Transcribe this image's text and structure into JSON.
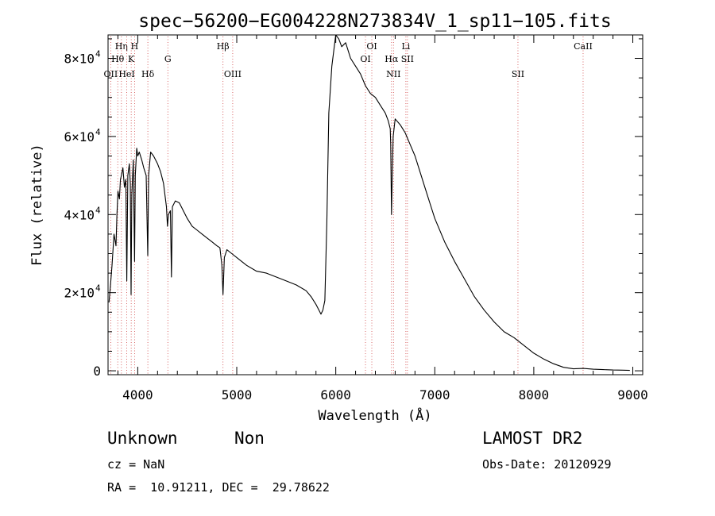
{
  "chart_data": {
    "type": "line",
    "title": "spec−56200−EG004228N273834V_1_sp11−105.fits",
    "xlabel": "Wavelength (Å)",
    "ylabel": "Flux (relative)",
    "xlim": [
      3700,
      9100
    ],
    "ylim": [
      -1000,
      86000
    ],
    "x_ticks": [
      {
        "value": 4000,
        "label": "4000"
      },
      {
        "value": 5000,
        "label": "5000"
      },
      {
        "value": 6000,
        "label": "6000"
      },
      {
        "value": 7000,
        "label": "7000"
      },
      {
        "value": 8000,
        "label": "8000"
      },
      {
        "value": 9000,
        "label": "9000"
      }
    ],
    "y_ticks": [
      {
        "value": 0,
        "label": "0"
      },
      {
        "value": 20000,
        "label": "2×10",
        "exp": "4"
      },
      {
        "value": 40000,
        "label": "4×10",
        "exp": "4"
      },
      {
        "value": 60000,
        "label": "6×10",
        "exp": "4"
      },
      {
        "value": 80000,
        "label": "8×10",
        "exp": "4"
      }
    ],
    "series": [
      {
        "x": [
          3710,
          3725,
          3740,
          3760,
          3780,
          3790,
          3800,
          3815,
          3825,
          3835,
          3850,
          3865,
          3880,
          3889,
          3900,
          3915,
          3925,
          3933,
          3940,
          3955,
          3968,
          3975,
          3990,
          4000,
          4015,
          4040,
          4060,
          4085,
          4101,
          4110,
          4130,
          4160,
          4180,
          4200,
          4230,
          4260,
          4290,
          4300,
          4310,
          4330,
          4340,
          4350,
          4380,
          4420,
          4460,
          4500,
          4550,
          4600,
          4650,
          4700,
          4750,
          4800,
          4830,
          4850,
          4861,
          4875,
          4900,
          4950,
          5000,
          5100,
          5200,
          5300,
          5400,
          5500,
          5600,
          5700,
          5750,
          5800,
          5830,
          5850,
          5870,
          5890,
          5910,
          5930,
          5960,
          6000,
          6030,
          6060,
          6100,
          6150,
          6200,
          6250,
          6300,
          6350,
          6400,
          6450,
          6500,
          6530,
          6550,
          6555,
          6563,
          6570,
          6580,
          6600,
          6650,
          6700,
          6750,
          6800,
          6850,
          6900,
          6950,
          7000,
          7100,
          7200,
          7300,
          7400,
          7500,
          7600,
          7700,
          7800,
          7900,
          8000,
          8100,
          8200,
          8300,
          8400,
          8500,
          8600,
          8700,
          8800,
          8900,
          8970
        ],
        "y": [
          17500,
          22000,
          27000,
          35000,
          32000,
          40000,
          46000,
          44000,
          49000,
          50000,
          52000,
          47000,
          49000,
          23000,
          50000,
          53000,
          48000,
          19500,
          45000,
          54000,
          28000,
          50000,
          57000,
          55000,
          56000,
          54000,
          52000,
          50000,
          29500,
          50000,
          56000,
          55000,
          54000,
          53000,
          51000,
          48000,
          42000,
          37000,
          40000,
          41000,
          24000,
          42000,
          43500,
          43000,
          41000,
          39000,
          37000,
          36000,
          35000,
          34000,
          33000,
          32000,
          31500,
          27000,
          19500,
          29000,
          31000,
          30000,
          29000,
          27000,
          25500,
          25000,
          24000,
          23000,
          22000,
          20500,
          19000,
          17000,
          15500,
          14500,
          15500,
          18000,
          38000,
          66000,
          78000,
          86000,
          85000,
          83000,
          84000,
          80000,
          78000,
          76000,
          73000,
          71000,
          70000,
          68000,
          66000,
          64000,
          62000,
          58000,
          40000,
          50000,
          60000,
          64500,
          63000,
          61000,
          58000,
          55000,
          51000,
          47000,
          43000,
          39000,
          33000,
          28000,
          23500,
          19000,
          15500,
          12500,
          10000,
          8500,
          6500,
          4500,
          3000,
          1800,
          900,
          500,
          600,
          400,
          300,
          200,
          150,
          100
        ]
      }
    ],
    "lines": [
      {
        "label": "OII",
        "x": 3727,
        "row": 3
      },
      {
        "label": "Hθ",
        "x": 3798,
        "row": 2
      },
      {
        "label": "Hη",
        "x": 3835,
        "row": 1
      },
      {
        "label": "HeI",
        "x": 3889,
        "row": 3
      },
      {
        "label": "K",
        "x": 3934,
        "row": 2
      },
      {
        "label": "H",
        "x": 3968,
        "row": 1
      },
      {
        "label": "Hδ",
        "x": 4102,
        "row": 3
      },
      {
        "label": "G",
        "x": 4304,
        "row": 2
      },
      {
        "label": "Hβ",
        "x": 4861,
        "row": 1
      },
      {
        "label": "OIII",
        "x": 4959,
        "row": 3
      },
      {
        "label": "OI",
        "x": 6300,
        "row": 2
      },
      {
        "label": "OI",
        "x": 6364,
        "row": 1
      },
      {
        "label": "Hα",
        "x": 6563,
        "row": 2
      },
      {
        "label": "NII",
        "x": 6583,
        "row": 3
      },
      {
        "label": "Li",
        "x": 6708,
        "row": 1
      },
      {
        "label": "SII",
        "x": 6724,
        "row": 2
      },
      {
        "label": "SII",
        "x": 7840,
        "row": 3
      },
      {
        "label": "CaII",
        "x": 8498,
        "row": 1
      }
    ]
  },
  "info": {
    "class_label": "Unknown",
    "subclass_label": "Non",
    "cz": "cz = NaN",
    "coords": "RA =  10.91211, DEC =  29.78622",
    "survey": "LAMOST DR2",
    "obs_date": "Obs-Date: 20120929"
  }
}
